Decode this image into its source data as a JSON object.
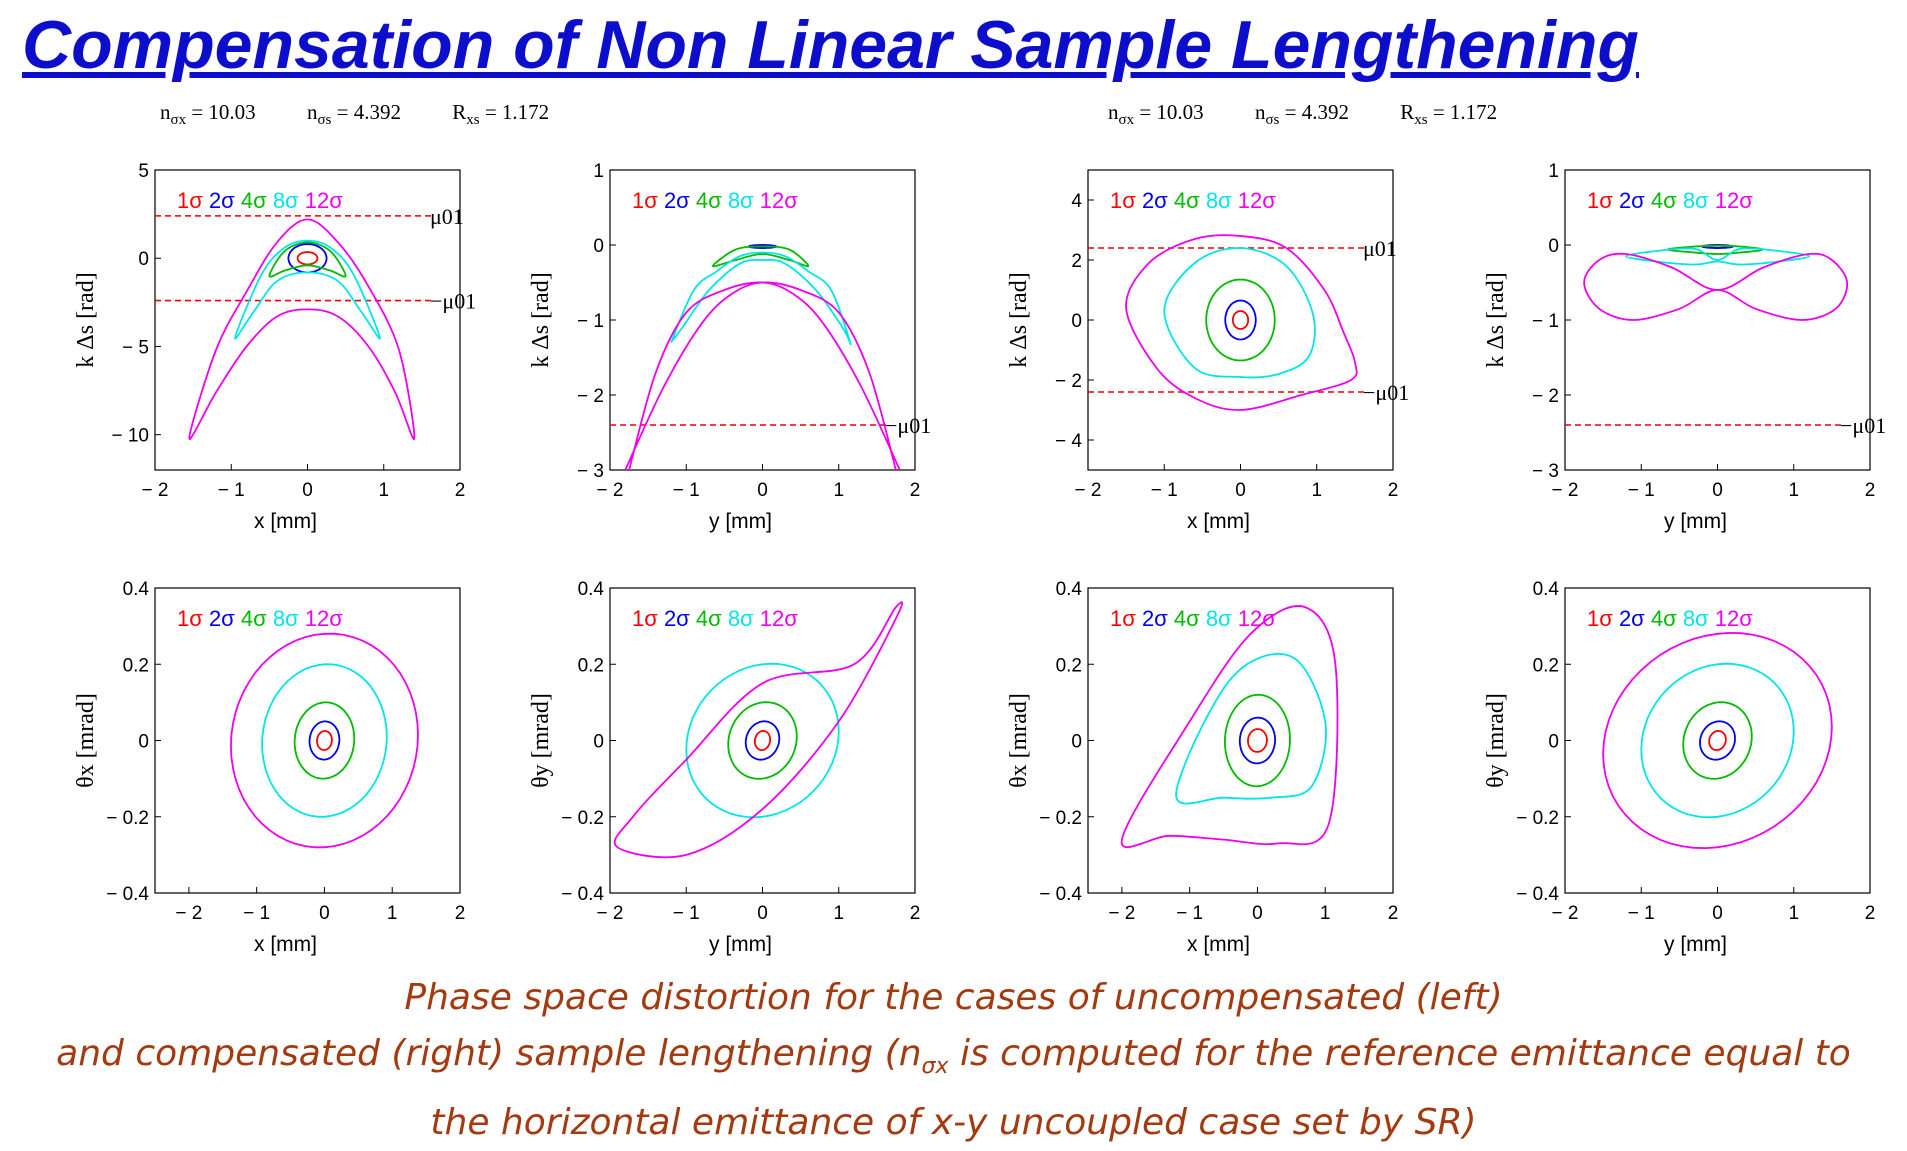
{
  "title": "Compensation of Non Linear Sample Lengthening",
  "params_left": {
    "nsx_sym": "n",
    "nsx_sub": "σx",
    "nsx_val": " = 10.03",
    "nss_sym": "n",
    "nss_sub": "σs",
    "nss_val": " = 4.392",
    "rxs_sym": "R",
    "rxs_sub": "xs",
    "rxs_val": " = 1.172"
  },
  "params_right": {
    "nsx_sym": "n",
    "nsx_sub": "σx",
    "nsx_val": " = 10.03",
    "nss_sym": "n",
    "nss_sub": "σs",
    "nss_val": " = 4.392",
    "rxs_sym": "R",
    "rxs_sub": "xs",
    "rxs_val": " = 1.172"
  },
  "caption": {
    "line1": "Phase space distortion for the cases of uncompensated (left)",
    "line2_a": "and compensated (right) sample lengthening (n",
    "line2_sub": "σx",
    "line2_b": " is computed for the reference emittance equal to",
    "line3": "the horizontal emittance of x-y uncoupled case set by SR)"
  },
  "colors": {
    "sigma1": "#ff0000",
    "sigma2": "#0000ee",
    "sigma4": "#00bb00",
    "sigma8": "#00e5e5",
    "sigma12": "#ee00ee",
    "mu_line": "#ee0000",
    "title": "#0d0dcc",
    "caption": "#a33a10"
  },
  "chart_data": [
    {
      "type": "line",
      "group": "uncompensated",
      "xlabel": "x [mm]",
      "ylabel": "k Δs [rad]",
      "xlim": [
        -2,
        2
      ],
      "ylim": [
        -12,
        5
      ],
      "xticks": [
        -2,
        -1,
        0,
        1,
        2
      ],
      "yticks": [
        5,
        0,
        -5,
        -10
      ],
      "legend": [
        "1σ",
        "2σ",
        "4σ",
        "8σ",
        "12σ"
      ],
      "hlines": [
        {
          "y": 2.4,
          "label": "μ01"
        },
        {
          "y": -2.4,
          "label": "−μ01"
        }
      ],
      "series": [
        {
          "name": "1σ",
          "shape": "oval",
          "cx": 0,
          "cy": 0,
          "rx": 0.13,
          "ry": 0.35,
          "tilt": 0
        },
        {
          "name": "2σ",
          "shape": "oval",
          "cx": 0,
          "cy": 0,
          "rx": 0.25,
          "ry": 0.8,
          "tilt": 0
        },
        {
          "name": "4σ",
          "shape": "banana",
          "x": [
            -0.5,
            -0.3,
            0,
            0.3,
            0.5,
            0.3,
            0,
            -0.3,
            -0.5
          ],
          "y": [
            -1.0,
            0.4,
            0.9,
            0.4,
            -1.0,
            -0.7,
            -0.4,
            -0.7,
            -1.0
          ]
        },
        {
          "name": "8σ",
          "shape": "banana",
          "x": [
            -0.95,
            -0.6,
            -0.3,
            0,
            0.3,
            0.6,
            0.95,
            0.7,
            0.4,
            0,
            -0.4,
            -0.7,
            -0.95
          ],
          "y": [
            -4.5,
            -0.9,
            0.6,
            1.0,
            0.6,
            -0.9,
            -4.5,
            -3.0,
            -1.3,
            -0.8,
            -1.3,
            -3.0,
            -4.5
          ]
        },
        {
          "name": "12σ",
          "shape": "banana",
          "x": [
            -1.55,
            -1.2,
            -0.8,
            -0.4,
            0,
            0.4,
            0.8,
            1.2,
            1.4,
            1.15,
            0.8,
            0.4,
            0,
            -0.4,
            -0.8,
            -1.2,
            -1.55
          ],
          "y": [
            -10.2,
            -5.2,
            -1.9,
            0.9,
            2.2,
            0.9,
            -1.6,
            -5.2,
            -10.2,
            -7.6,
            -5.0,
            -3.3,
            -2.9,
            -3.3,
            -5.0,
            -7.6,
            -10.2
          ]
        }
      ]
    },
    {
      "type": "line",
      "group": "uncompensated",
      "xlabel": "y [mm]",
      "ylabel": "k Δs [rad]",
      "xlim": [
        -2,
        2
      ],
      "ylim": [
        -3,
        1
      ],
      "xticks": [
        -2,
        -1,
        0,
        1,
        2
      ],
      "yticks": [
        1,
        0,
        -1,
        -2,
        -3
      ],
      "legend": [
        "1σ",
        "2σ",
        "4σ",
        "8σ",
        "12σ"
      ],
      "hlines": [
        {
          "y": -2.4,
          "label": "−μ01"
        }
      ],
      "series": [
        {
          "name": "1σ",
          "shape": "oval",
          "cx": 0,
          "cy": -0.02,
          "rx": 0.08,
          "ry": 0.02,
          "tilt": 0
        },
        {
          "name": "2σ",
          "shape": "oval",
          "cx": 0,
          "cy": -0.02,
          "rx": 0.18,
          "ry": 0.02,
          "tilt": 0
        },
        {
          "name": "4σ",
          "shape": "poly",
          "x": [
            -0.65,
            -0.35,
            0,
            0.35,
            0.6,
            0.35,
            0,
            -0.35,
            -0.65
          ],
          "y": [
            -0.28,
            -0.06,
            -0.02,
            -0.06,
            -0.28,
            -0.2,
            -0.12,
            -0.2,
            -0.28
          ]
        },
        {
          "name": "8σ",
          "shape": "open",
          "x": [
            -1.2,
            -0.9,
            -0.6,
            -0.3,
            0,
            0.3,
            0.6,
            0.9,
            1.15,
            1.05,
            0.7,
            0.3,
            0,
            -0.3,
            -0.7,
            -1.05,
            -1.2
          ],
          "y": [
            -1.3,
            -0.6,
            -0.35,
            -0.15,
            -0.1,
            -0.15,
            -0.35,
            -0.6,
            -1.3,
            -1.1,
            -0.6,
            -0.25,
            -0.2,
            -0.25,
            -0.6,
            -1.1,
            -1.3
          ]
        },
        {
          "name": "12σ",
          "shape": "cross",
          "x1": [
            -1.8,
            -1.3,
            -0.8,
            -0.4,
            0,
            0.5,
            1.0,
            1.4,
            1.75
          ],
          "y1": [
            -3.0,
            -1.9,
            -1.05,
            -0.65,
            -0.5,
            -0.6,
            -0.9,
            -1.7,
            -3.0
          ],
          "x2": [
            -1.75,
            -1.4,
            -1.0,
            -0.5,
            0,
            0.4,
            0.8,
            1.3,
            1.8
          ],
          "y2": [
            -3.0,
            -1.7,
            -0.9,
            -0.6,
            -0.5,
            -0.65,
            -1.05,
            -1.9,
            -3.0
          ]
        }
      ]
    },
    {
      "type": "line",
      "group": "compensated",
      "xlabel": "x [mm]",
      "ylabel": "k Δs [rad]",
      "xlim": [
        -2,
        2
      ],
      "ylim": [
        -5,
        5
      ],
      "xticks": [
        -2,
        -1,
        0,
        1,
        2
      ],
      "yticks": [
        4,
        2,
        0,
        -2,
        -4
      ],
      "legend": [
        "1σ",
        "2σ",
        "4σ",
        "8σ",
        "12σ"
      ],
      "hlines": [
        {
          "y": 2.4,
          "label": "μ01"
        },
        {
          "y": -2.4,
          "label": "−μ01"
        }
      ],
      "series": [
        {
          "name": "1σ",
          "shape": "oval",
          "cx": 0,
          "cy": 0,
          "rx": 0.1,
          "ry": 0.3,
          "tilt": 0
        },
        {
          "name": "2σ",
          "shape": "oval",
          "cx": 0,
          "cy": 0,
          "rx": 0.2,
          "ry": 0.65,
          "tilt": 0
        },
        {
          "name": "4σ",
          "shape": "oval",
          "cx": 0,
          "cy": 0,
          "rx": 0.45,
          "ry": 1.35,
          "tilt": 0
        },
        {
          "name": "8σ",
          "shape": "poly",
          "x": [
            -1.0,
            -0.6,
            0,
            0.6,
            0.95,
            0.9,
            0.5,
            0,
            -0.6,
            -1.0
          ],
          "y": [
            0.3,
            1.9,
            2.4,
            1.8,
            0.2,
            -1.2,
            -1.8,
            -1.9,
            -1.6,
            0.3
          ]
        },
        {
          "name": "12σ",
          "shape": "poly",
          "x": [
            -1.5,
            -1.2,
            -0.6,
            0,
            0.6,
            1.1,
            1.35,
            1.5,
            1.45,
            0.8,
            0,
            -0.6,
            -1.1,
            -1.5
          ],
          "y": [
            0.4,
            1.9,
            2.7,
            2.8,
            2.4,
            1.0,
            -0.4,
            -1.4,
            -2.0,
            -2.5,
            -3.0,
            -2.6,
            -1.6,
            0.4
          ]
        }
      ]
    },
    {
      "type": "line",
      "group": "compensated",
      "xlabel": "y [mm]",
      "ylabel": "k Δs [rad]",
      "xlim": [
        -2,
        2
      ],
      "ylim": [
        -3,
        1
      ],
      "xticks": [
        -2,
        -1,
        0,
        1,
        2
      ],
      "yticks": [
        1,
        0,
        -1,
        -2,
        -3
      ],
      "legend": [
        "1σ",
        "2σ",
        "4σ",
        "8σ",
        "12σ"
      ],
      "hlines": [
        {
          "y": -2.4,
          "label": "−μ01"
        }
      ],
      "series": [
        {
          "name": "1σ",
          "shape": "oval",
          "cx": 0,
          "cy": -0.02,
          "rx": 0.1,
          "ry": 0.02,
          "tilt": 0
        },
        {
          "name": "2σ",
          "shape": "oval",
          "cx": 0,
          "cy": -0.02,
          "rx": 0.2,
          "ry": 0.02,
          "tilt": 0
        },
        {
          "name": "4σ",
          "shape": "poly",
          "x": [
            -0.65,
            -0.3,
            0,
            0.3,
            0.6,
            0.3,
            0,
            -0.3,
            -0.65
          ],
          "y": [
            -0.06,
            -0.02,
            -0.01,
            -0.02,
            -0.06,
            -0.1,
            -0.12,
            -0.1,
            -0.06
          ]
        },
        {
          "name": "8σ",
          "shape": "poly",
          "x": [
            -1.2,
            -0.8,
            -0.3,
            0,
            0.3,
            0.8,
            1.2,
            0.8,
            0.3,
            0,
            -0.3,
            -0.8,
            -1.2
          ],
          "y": [
            -0.15,
            -0.08,
            -0.05,
            -0.2,
            -0.05,
            -0.08,
            -0.15,
            -0.22,
            -0.26,
            -0.22,
            -0.26,
            -0.22,
            -0.15
          ]
        },
        {
          "name": "12σ",
          "shape": "figure8",
          "x": [
            0,
            -0.6,
            -1.2,
            -1.55,
            -1.75,
            -1.55,
            -1.1,
            -0.5,
            0,
            0.5,
            1.1,
            1.55,
            1.7,
            1.5,
            1.2,
            0.6,
            0
          ],
          "y": [
            -0.6,
            -0.3,
            -0.12,
            -0.2,
            -0.5,
            -0.85,
            -1.0,
            -0.85,
            -0.6,
            -0.85,
            -1.0,
            -0.85,
            -0.5,
            -0.2,
            -0.12,
            -0.3,
            -0.6
          ]
        }
      ]
    },
    {
      "type": "line",
      "group": "uncompensated",
      "xlabel": "x [mm]",
      "ylabel": "θx [mrad]",
      "xlim": [
        -2.5,
        2
      ],
      "ylim": [
        -0.4,
        0.4
      ],
      "xticks": [
        -2,
        -1,
        0,
        1,
        2
      ],
      "yticks": [
        0.4,
        0.2,
        0,
        -0.2,
        -0.4
      ],
      "legend": [
        "1σ",
        "2σ",
        "4σ",
        "8σ",
        "12σ"
      ],
      "hlines": [],
      "series": [
        {
          "name": "1σ",
          "shape": "oval",
          "cx": 0,
          "cy": 0,
          "rx": 0.11,
          "ry": 0.025,
          "tilt": 0.5
        },
        {
          "name": "2σ",
          "shape": "oval",
          "cx": 0,
          "cy": 0,
          "rx": 0.22,
          "ry": 0.05,
          "tilt": 0.5
        },
        {
          "name": "4σ",
          "shape": "oval",
          "cx": 0,
          "cy": 0,
          "rx": 0.44,
          "ry": 0.1,
          "tilt": 0.5
        },
        {
          "name": "8σ",
          "shape": "oval",
          "cx": 0,
          "cy": 0,
          "rx": 0.92,
          "ry": 0.2,
          "tilt": 0.5
        },
        {
          "name": "12σ",
          "shape": "oval",
          "cx": 0,
          "cy": 0,
          "rx": 1.38,
          "ry": 0.28,
          "tilt": 0.5
        }
      ]
    },
    {
      "type": "line",
      "group": "uncompensated",
      "xlabel": "y [mm]",
      "ylabel": "θy [mrad]",
      "xlim": [
        -2,
        2
      ],
      "ylim": [
        -0.4,
        0.4
      ],
      "xticks": [
        -2,
        -1,
        0,
        1,
        2
      ],
      "yticks": [
        0.4,
        0.2,
        0,
        -0.2,
        -0.4
      ],
      "legend": [
        "1σ",
        "2σ",
        "4σ",
        "8σ",
        "12σ"
      ],
      "hlines": [],
      "series": [
        {
          "name": "1σ",
          "shape": "oval",
          "cx": 0,
          "cy": 0,
          "rx": 0.1,
          "ry": 0.025,
          "tilt": 1.0
        },
        {
          "name": "2σ",
          "shape": "oval",
          "cx": 0,
          "cy": 0,
          "rx": 0.22,
          "ry": 0.05,
          "tilt": 1.0
        },
        {
          "name": "4σ",
          "shape": "oval",
          "cx": 0,
          "cy": 0,
          "rx": 0.45,
          "ry": 0.1,
          "tilt": 1.0
        },
        {
          "name": "8σ",
          "shape": "oval",
          "cx": 0,
          "cy": 0,
          "rx": 1.0,
          "ry": 0.2,
          "tilt": 1.0
        },
        {
          "name": "12σ",
          "shape": "poly",
          "x": [
            -1.9,
            -1.0,
            0,
            1.0,
            1.75,
            1.75,
            1.2,
            0,
            -1.0,
            -1.7,
            -1.9
          ],
          "y": [
            -0.28,
            -0.3,
            -0.18,
            0.05,
            0.32,
            0.35,
            0.2,
            0.15,
            -0.05,
            -0.2,
            -0.28
          ]
        }
      ]
    },
    {
      "type": "line",
      "group": "compensated",
      "xlabel": "x [mm]",
      "ylabel": "θx [mrad]",
      "xlim": [
        -2.5,
        2
      ],
      "ylim": [
        -0.4,
        0.4
      ],
      "xticks": [
        -2,
        -1,
        0,
        1,
        2
      ],
      "yticks": [
        0.4,
        0.2,
        0,
        -0.2,
        -0.4
      ],
      "legend": [
        "1σ",
        "2σ",
        "4σ",
        "8σ",
        "12σ"
      ],
      "hlines": [],
      "series": [
        {
          "name": "1σ",
          "shape": "oval",
          "cx": 0,
          "cy": 0,
          "rx": 0.14,
          "ry": 0.03,
          "tilt": 0.3
        },
        {
          "name": "2σ",
          "shape": "oval",
          "cx": 0,
          "cy": 0,
          "rx": 0.26,
          "ry": 0.06,
          "tilt": 0.3
        },
        {
          "name": "4σ",
          "shape": "oval",
          "cx": 0,
          "cy": 0,
          "rx": 0.48,
          "ry": 0.12,
          "tilt": 0.3
        },
        {
          "name": "8σ",
          "shape": "poly",
          "x": [
            -1.2,
            -0.4,
            0.5,
            1.0,
            0.8,
            0.2,
            -0.5,
            -1.2
          ],
          "y": [
            -0.14,
            0.16,
            0.22,
            0.05,
            -0.12,
            -0.15,
            -0.15,
            -0.14
          ]
        },
        {
          "name": "12σ",
          "shape": "poly",
          "x": [
            -2.0,
            -1.0,
            -0.1,
            0.7,
            1.15,
            1.05,
            0.3,
            -0.5,
            -1.3,
            -2.0
          ],
          "y": [
            -0.26,
            0.05,
            0.28,
            0.35,
            0.2,
            -0.22,
            -0.27,
            -0.26,
            -0.25,
            -0.26
          ]
        }
      ]
    },
    {
      "type": "line",
      "group": "compensated",
      "xlabel": "y [mm]",
      "ylabel": "θy [mrad]",
      "xlim": [
        -2,
        2
      ],
      "ylim": [
        -0.4,
        0.4
      ],
      "xticks": [
        -2,
        -1,
        0,
        1,
        2
      ],
      "yticks": [
        0.4,
        0.2,
        0,
        -0.2,
        -0.4
      ],
      "legend": [
        "1σ",
        "2σ",
        "4σ",
        "8σ",
        "12σ"
      ],
      "hlines": [],
      "series": [
        {
          "name": "1σ",
          "shape": "oval",
          "cx": 0,
          "cy": 0,
          "rx": 0.11,
          "ry": 0.025,
          "tilt": 1.0
        },
        {
          "name": "2σ",
          "shape": "oval",
          "cx": 0,
          "cy": 0,
          "rx": 0.23,
          "ry": 0.05,
          "tilt": 1.0
        },
        {
          "name": "4σ",
          "shape": "oval",
          "cx": 0,
          "cy": 0,
          "rx": 0.45,
          "ry": 0.1,
          "tilt": 1.0
        },
        {
          "name": "8σ",
          "shape": "oval",
          "cx": 0,
          "cy": 0,
          "rx": 1.0,
          "ry": 0.2,
          "tilt": 1.0
        },
        {
          "name": "12σ",
          "shape": "oval",
          "cx": 0,
          "cy": 0,
          "rx": 1.5,
          "ry": 0.28,
          "tilt": 1.0
        }
      ]
    }
  ]
}
